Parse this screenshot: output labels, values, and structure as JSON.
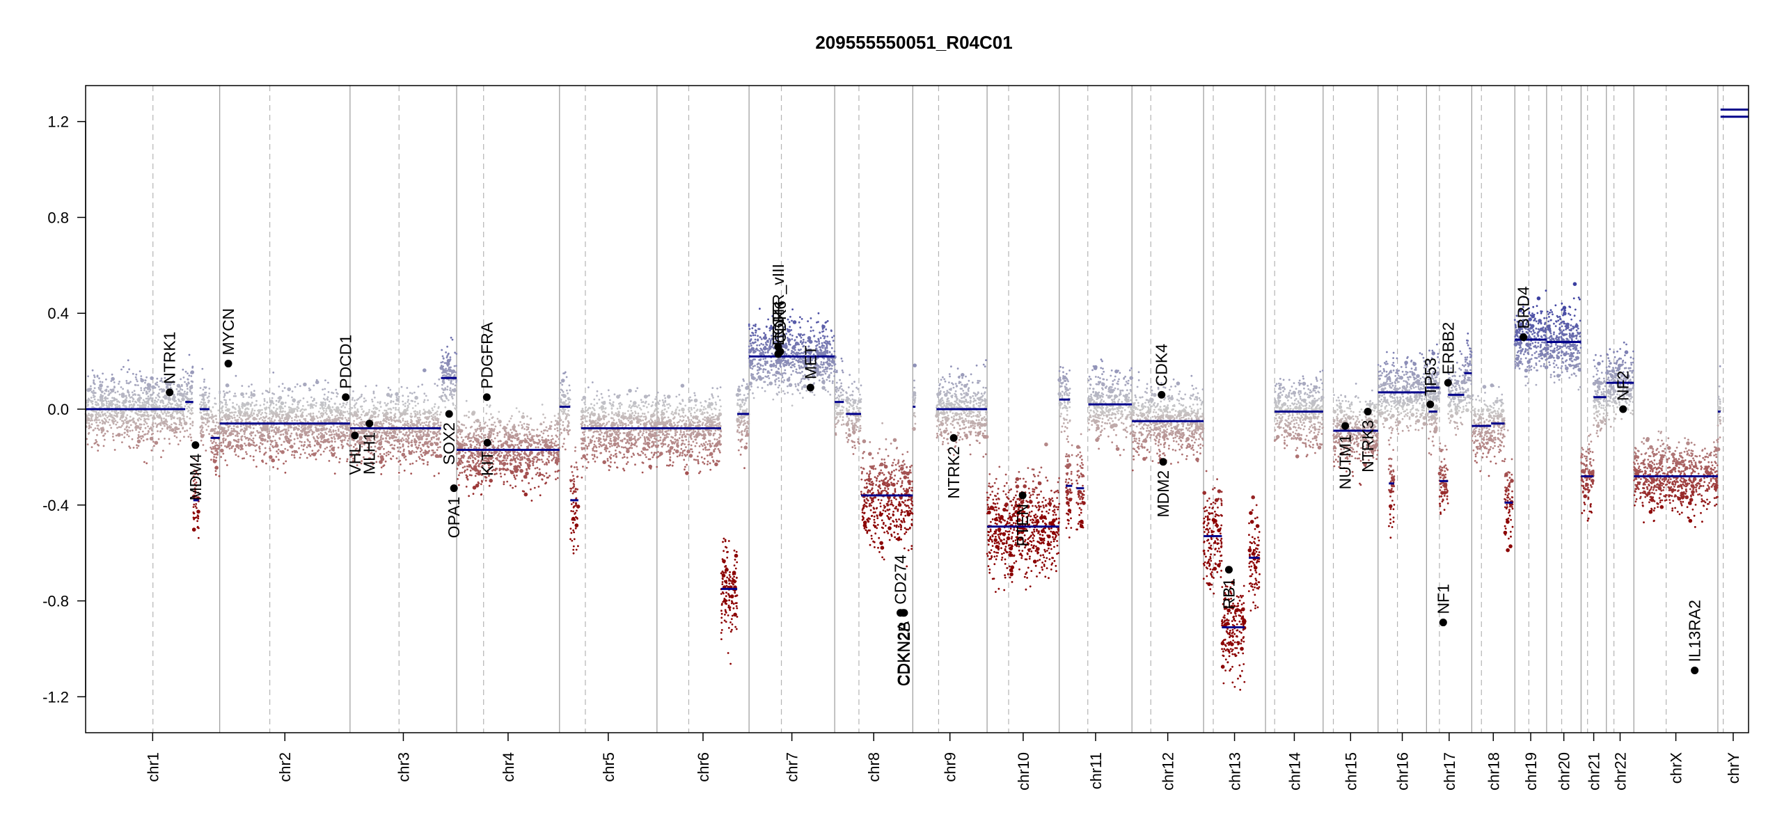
{
  "chart_data": {
    "type": "scatter",
    "title": "209555550051_R04C01",
    "xlabel": "",
    "ylabel": "",
    "ylim": [
      -1.35,
      1.35
    ],
    "yticks": [
      -1.2,
      -0.8,
      -0.4,
      0.0,
      0.4,
      0.8,
      1.2
    ],
    "ytick_labels": [
      "-1.2",
      "-0.8",
      "-0.4",
      "0.0",
      "0.4",
      "0.8",
      "1.2"
    ],
    "grid": false,
    "colors": {
      "gain": "#3b3fa0",
      "loss": "#8b0000",
      "neutral": "#c8c8c8",
      "segment": "#00008b",
      "chrom_boundary": "#9a9a9a",
      "centromere": "#b4b4b4",
      "gene_point": "#000000"
    },
    "chromosomes": [
      {
        "name": "chr1",
        "start": 0,
        "end": 249,
        "centromere": 125
      },
      {
        "name": "chr2",
        "start": 249,
        "end": 491,
        "centromere": 342
      },
      {
        "name": "chr3",
        "start": 491,
        "end": 689,
        "centromere": 582
      },
      {
        "name": "chr4",
        "start": 689,
        "end": 880,
        "centromere": 739
      },
      {
        "name": "chr5",
        "start": 880,
        "end": 1061,
        "centromere": 928
      },
      {
        "name": "chr6",
        "start": 1061,
        "end": 1232,
        "centromere": 1120
      },
      {
        "name": "chr7",
        "start": 1232,
        "end": 1391,
        "centromere": 1292
      },
      {
        "name": "chr8",
        "start": 1391,
        "end": 1536,
        "centromere": 1436
      },
      {
        "name": "chr9",
        "start": 1536,
        "end": 1674,
        "centromere": 1584
      },
      {
        "name": "chr10",
        "start": 1674,
        "end": 1808,
        "centromere": 1714
      },
      {
        "name": "chr11",
        "start": 1808,
        "end": 1943,
        "centromere": 1861
      },
      {
        "name": "chr12",
        "start": 1943,
        "end": 2076,
        "centromere": 1978
      },
      {
        "name": "chr13",
        "start": 2076,
        "end": 2191,
        "centromere": 2094
      },
      {
        "name": "chr14",
        "start": 2191,
        "end": 2298,
        "centromere": 2208
      },
      {
        "name": "chr15",
        "start": 2298,
        "end": 2400,
        "centromere": 2317
      },
      {
        "name": "chr16",
        "start": 2400,
        "end": 2490,
        "centromere": 2436
      },
      {
        "name": "chr17",
        "start": 2490,
        "end": 2574,
        "centromere": 2514
      },
      {
        "name": "chr18",
        "start": 2574,
        "end": 2654,
        "centromere": 2592
      },
      {
        "name": "chr19",
        "start": 2654,
        "end": 2713,
        "centromere": 2680
      },
      {
        "name": "chr20",
        "start": 2713,
        "end": 2777,
        "centromere": 2741
      },
      {
        "name": "chr21",
        "start": 2777,
        "end": 2824,
        "centromere": 2789
      },
      {
        "name": "chr22",
        "start": 2824,
        "end": 2875,
        "centromere": 2838
      },
      {
        "name": "chrX",
        "start": 2875,
        "end": 3031,
        "centromere": 2935
      },
      {
        "name": "chrY",
        "start": 3031,
        "end": 3088,
        "centromere": 3041
      }
    ],
    "segments": [
      {
        "x0": 0,
        "x1": 185,
        "y": 0.0
      },
      {
        "x0": 185,
        "x1": 200,
        "y": 0.03
      },
      {
        "x0": 200,
        "x1": 210,
        "y": -0.38
      },
      {
        "x0": 212,
        "x1": 230,
        "y": 0.0
      },
      {
        "x0": 232,
        "x1": 249,
        "y": -0.12
      },
      {
        "x0": 249,
        "x1": 491,
        "y": -0.06
      },
      {
        "x0": 491,
        "x1": 660,
        "y": -0.08
      },
      {
        "x0": 660,
        "x1": 689,
        "y": 0.13
      },
      {
        "x0": 689,
        "x1": 880,
        "y": -0.17
      },
      {
        "x0": 880,
        "x1": 900,
        "y": 0.01
      },
      {
        "x0": 900,
        "x1": 915,
        "y": -0.38
      },
      {
        "x0": 920,
        "x1": 1061,
        "y": -0.08
      },
      {
        "x0": 1061,
        "x1": 1180,
        "y": -0.08
      },
      {
        "x0": 1180,
        "x1": 1210,
        "y": -0.75
      },
      {
        "x0": 1210,
        "x1": 1232,
        "y": -0.02
      },
      {
        "x0": 1232,
        "x1": 1391,
        "y": 0.22
      },
      {
        "x0": 1391,
        "x1": 1408,
        "y": 0.03
      },
      {
        "x0": 1412,
        "x1": 1440,
        "y": -0.02
      },
      {
        "x0": 1440,
        "x1": 1536,
        "y": -0.36
      },
      {
        "x0": 1536,
        "x1": 1541,
        "y": 0.01
      },
      {
        "x0": 1580,
        "x1": 1674,
        "y": 0.0
      },
      {
        "x0": 1674,
        "x1": 1808,
        "y": -0.49
      },
      {
        "x0": 1808,
        "x1": 1828,
        "y": 0.04
      },
      {
        "x0": 1820,
        "x1": 1832,
        "y": -0.32
      },
      {
        "x0": 1840,
        "x1": 1854,
        "y": -0.33
      },
      {
        "x0": 1862,
        "x1": 1943,
        "y": 0.02
      },
      {
        "x0": 1943,
        "x1": 2076,
        "y": -0.05
      },
      {
        "x0": 2076,
        "x1": 2110,
        "y": -0.53
      },
      {
        "x0": 2110,
        "x1": 2152,
        "y": -0.91
      },
      {
        "x0": 2160,
        "x1": 2180,
        "y": -0.62
      },
      {
        "x0": 2208,
        "x1": 2298,
        "y": -0.01
      },
      {
        "x0": 2317,
        "x1": 2400,
        "y": -0.09
      },
      {
        "x0": 2400,
        "x1": 2460,
        "y": 0.07
      },
      {
        "x0": 2420,
        "x1": 2430,
        "y": -0.31
      },
      {
        "x0": 2460,
        "x1": 2490,
        "y": 0.07
      },
      {
        "x0": 2490,
        "x1": 2514,
        "y": 0.09
      },
      {
        "x0": 2494,
        "x1": 2510,
        "y": -0.01
      },
      {
        "x0": 2514,
        "x1": 2530,
        "y": -0.3
      },
      {
        "x0": 2530,
        "x1": 2560,
        "y": 0.06
      },
      {
        "x0": 2560,
        "x1": 2574,
        "y": 0.15
      },
      {
        "x0": 2574,
        "x1": 2610,
        "y": -0.07
      },
      {
        "x0": 2610,
        "x1": 2635,
        "y": -0.06
      },
      {
        "x0": 2635,
        "x1": 2650,
        "y": -0.39
      },
      {
        "x0": 2654,
        "x1": 2713,
        "y": 0.29
      },
      {
        "x0": 2713,
        "x1": 2777,
        "y": 0.28
      },
      {
        "x0": 2777,
        "x1": 2800,
        "y": -0.28
      },
      {
        "x0": 2800,
        "x1": 2824,
        "y": 0.05
      },
      {
        "x0": 2824,
        "x1": 2875,
        "y": 0.11
      },
      {
        "x0": 2875,
        "x1": 3031,
        "y": -0.28
      },
      {
        "x0": 3031,
        "x1": 3036,
        "y": -0.01
      },
      {
        "x0": 3036,
        "x1": 3088,
        "y": 1.22
      },
      {
        "x0": 3036,
        "x1": 3088,
        "y": 1.25
      }
    ],
    "genes": [
      {
        "name": "NTRK1",
        "x": 156,
        "y": 0.07,
        "side": "above"
      },
      {
        "name": "MDM4",
        "x": 204,
        "y": -0.15,
        "side": "below"
      },
      {
        "name": "MYCN",
        "x": 265,
        "y": 0.19,
        "side": "above"
      },
      {
        "name": "PDCD1",
        "x": 483,
        "y": 0.05,
        "side": "above"
      },
      {
        "name": "VHL",
        "x": 500,
        "y": -0.11,
        "side": "below"
      },
      {
        "name": "MLH1",
        "x": 527,
        "y": -0.06,
        "side": "below"
      },
      {
        "name": "SOX2",
        "x": 675,
        "y": -0.02,
        "side": "below"
      },
      {
        "name": "OPA1",
        "x": 684,
        "y": -0.33,
        "side": "below"
      },
      {
        "name": "PDGFRA",
        "x": 745,
        "y": 0.05,
        "side": "above"
      },
      {
        "name": "KIT",
        "x": 746,
        "y": -0.14,
        "side": "below"
      },
      {
        "name": "EGFR_vIII",
        "x": 1286,
        "y": 0.26,
        "side": "above"
      },
      {
        "name": "EGFR",
        "x": 1286,
        "y": 0.23,
        "side": "above"
      },
      {
        "name": "CDK6",
        "x": 1290,
        "y": 0.24,
        "side": "above"
      },
      {
        "name": "MET",
        "x": 1346,
        "y": 0.09,
        "side": "above"
      },
      {
        "name": "CD274",
        "x": 1513,
        "y": -0.85,
        "side": "above"
      },
      {
        "name": "CDKN2A",
        "x": 1518,
        "y": -0.85,
        "side": "below"
      },
      {
        "name": "CDKN2B",
        "x": 1520,
        "y": -0.85,
        "side": "below"
      },
      {
        "name": "NTRK2",
        "x": 1612,
        "y": -0.12,
        "side": "below"
      },
      {
        "name": "PTEN",
        "x": 1740,
        "y": -0.36,
        "side": "below"
      },
      {
        "name": "CDK4",
        "x": 1998,
        "y": 0.06,
        "side": "above"
      },
      {
        "name": "MDM2",
        "x": 2001,
        "y": -0.22,
        "side": "below"
      },
      {
        "name": "RB1",
        "x": 2123,
        "y": -0.67,
        "side": "below"
      },
      {
        "name": "NUTM1",
        "x": 2339,
        "y": -0.07,
        "side": "below"
      },
      {
        "name": "NTRK3",
        "x": 2381,
        "y": -0.01,
        "side": "below"
      },
      {
        "name": "TP53",
        "x": 2497,
        "y": 0.02,
        "side": "above"
      },
      {
        "name": "ERBB2",
        "x": 2530,
        "y": 0.11,
        "side": "above"
      },
      {
        "name": "NF1",
        "x": 2521,
        "y": -0.89,
        "side": "above"
      },
      {
        "name": "BRD4",
        "x": 2670,
        "y": 0.3,
        "side": "above"
      },
      {
        "name": "NF2",
        "x": 2855,
        "y": 0.0,
        "side": "above"
      },
      {
        "name": "IL13RA2",
        "x": 2988,
        "y": -1.09,
        "side": "above"
      }
    ]
  }
}
